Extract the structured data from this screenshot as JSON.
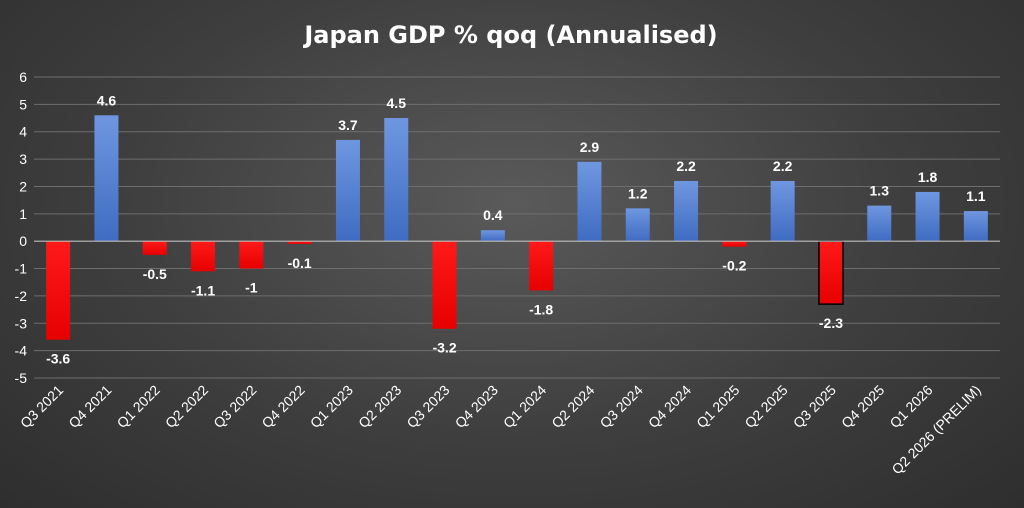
{
  "chart_data": {
    "type": "bar",
    "title": "Japan GDP % qoq (Annualised)",
    "xlabel": "",
    "ylabel": "",
    "ylim": [
      -5,
      6
    ],
    "yticks": [
      6,
      5,
      4,
      3,
      2,
      1,
      0,
      -1,
      -2,
      -3,
      -4,
      -5
    ],
    "grid": true,
    "legend": "none",
    "categories": [
      "Q3 2021",
      "Q4 2021",
      "Q1 2022",
      "Q2 2022",
      "Q3 2022",
      "Q4 2022",
      "Q1 2023",
      "Q2 2023",
      "Q3 2023",
      "Q4 2023",
      "Q1 2024",
      "Q2 2024",
      "Q3 2024",
      "Q4 2024",
      "Q1 2025",
      "Q2 2025",
      "Q3 2025",
      "Q4 2025",
      "Q1 2026",
      "Q2 2026 (PRELIM)"
    ],
    "values": [
      -3.6,
      4.6,
      -0.5,
      -1.1,
      -1,
      -0.1,
      3.7,
      4.5,
      -3.2,
      0.4,
      -1.8,
      2.9,
      1.2,
      2.2,
      -0.2,
      2.2,
      -2.3,
      1.3,
      1.8,
      1.1
    ],
    "data_labels": [
      "-3.6",
      "4.6",
      "-0.5",
      "-1.1",
      "-1",
      "-0.1",
      "3.7",
      "4.5",
      "-3.2",
      "0.4",
      "-1.8",
      "2.9",
      "1.2",
      "2.2",
      "-0.2",
      "2.2",
      "-2.3",
      "1.3",
      "1.8",
      "1.1"
    ],
    "colors": {
      "positive": "#4472c4",
      "positive_light": "#6f97e0",
      "negative": "#ff0000",
      "highlight_outline": "#000000"
    },
    "outlined_category": "Q3 2025"
  }
}
